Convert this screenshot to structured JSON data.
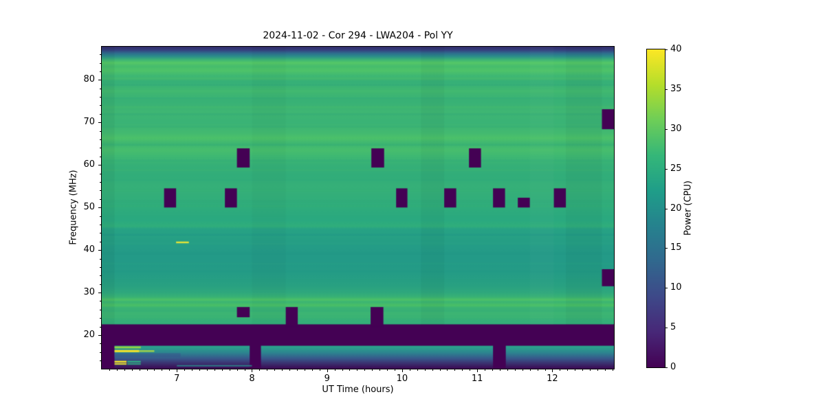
{
  "chart_data": {
    "type": "heatmap",
    "title": "2024-11-02 - Cor 294 - LWA204 - Pol YY",
    "xlabel": "UT Time (hours)",
    "ylabel": "Frequency (MHz)",
    "x_range": [
      6.0,
      12.82
    ],
    "y_range": [
      12.1,
      87.8
    ],
    "x_major_ticks": [
      7,
      8,
      9,
      10,
      11,
      12
    ],
    "x_minor_step": 0.1,
    "y_major_ticks": [
      20,
      30,
      40,
      50,
      60,
      70,
      80
    ],
    "y_minor_step": 2,
    "grid": false,
    "legend_position": "none",
    "colorbar": {
      "label": "Power (CPU)",
      "min": 0,
      "max": 40,
      "ticks": [
        0,
        5,
        10,
        15,
        20,
        25,
        30,
        35,
        40
      ],
      "viridis": [
        "#440154",
        "#482878",
        "#3e4989",
        "#31688e",
        "#26828e",
        "#1f9e89",
        "#35b779",
        "#6ece58",
        "#b5de2b",
        "#fde725"
      ]
    },
    "masked_color": "#440154",
    "background_profile": [
      [
        87.8,
        "#322b69"
      ],
      [
        87.0,
        "#35417e"
      ],
      [
        86.3,
        "#2f6b8e"
      ],
      [
        85.5,
        "#2b9089"
      ],
      [
        84.6,
        "#41b973"
      ],
      [
        84.0,
        "#55c767"
      ],
      [
        83.2,
        "#46bd6d"
      ],
      [
        82.2,
        "#4fc369"
      ],
      [
        81.0,
        "#3fb873"
      ],
      [
        79.5,
        "#36b078"
      ],
      [
        77.5,
        "#41b871"
      ],
      [
        75.0,
        "#38b176"
      ],
      [
        72.5,
        "#3fb673"
      ],
      [
        70.0,
        "#3ab376"
      ],
      [
        67.5,
        "#43ba70"
      ],
      [
        66.3,
        "#4cc16a"
      ],
      [
        65.0,
        "#3db672"
      ],
      [
        63.5,
        "#48be6d"
      ],
      [
        62.0,
        "#3eb873"
      ],
      [
        60.0,
        "#36b077"
      ],
      [
        57.5,
        "#31ad7a"
      ],
      [
        55.0,
        "#36b078"
      ],
      [
        52.0,
        "#32ae7a"
      ],
      [
        49.0,
        "#2dab7d"
      ],
      [
        47.0,
        "#2aa980"
      ],
      [
        45.6,
        "#30ae7b"
      ],
      [
        44.9,
        "#27a285"
      ],
      [
        43.0,
        "#26a084"
      ],
      [
        40.0,
        "#249b87"
      ],
      [
        37.0,
        "#239a87"
      ],
      [
        34.0,
        "#259d85"
      ],
      [
        31.5,
        "#29a181"
      ],
      [
        30.0,
        "#2fa87d"
      ],
      [
        29.0,
        "#38b175"
      ],
      [
        28.3,
        "#4dc167"
      ],
      [
        27.8,
        "#3bb473"
      ],
      [
        27.0,
        "#4ac066"
      ],
      [
        26.4,
        "#39b275"
      ],
      [
        25.0,
        "#3db573"
      ],
      [
        23.5,
        "#35af78"
      ],
      [
        22.6,
        "#33ad79"
      ],
      [
        22.45,
        "#440154"
      ],
      [
        12.1,
        "#440154"
      ]
    ],
    "texture_stripes": [
      {
        "f": 80.3,
        "h": 0.6,
        "c": "#4fc167",
        "a": 0.35
      },
      {
        "f": 78.8,
        "h": 0.5,
        "c": "#2da37d",
        "a": 0.3
      },
      {
        "f": 77.3,
        "h": 0.7,
        "c": "#47bd6c",
        "a": 0.3
      },
      {
        "f": 75.7,
        "h": 0.4,
        "c": "#2da37d",
        "a": 0.25
      },
      {
        "f": 73.6,
        "h": 0.6,
        "c": "#49be6b",
        "a": 0.3
      },
      {
        "f": 71.9,
        "h": 0.5,
        "c": "#2da37d",
        "a": 0.25
      },
      {
        "f": 69.0,
        "h": 0.4,
        "c": "#2da37d",
        "a": 0.2
      },
      {
        "f": 64.7,
        "h": 0.4,
        "c": "#2da37d",
        "a": 0.25
      },
      {
        "f": 61.0,
        "h": 0.4,
        "c": "#2da37d",
        "a": 0.2
      },
      {
        "f": 58.8,
        "h": 0.5,
        "c": "#42b96f",
        "a": 0.25
      },
      {
        "f": 56.5,
        "h": 0.4,
        "c": "#2da37d",
        "a": 0.2
      },
      {
        "f": 54.0,
        "h": 0.5,
        "c": "#3eb671",
        "a": 0.2
      },
      {
        "f": 51.5,
        "h": 0.4,
        "c": "#2da37d",
        "a": 0.2
      },
      {
        "f": 50.3,
        "h": 0.5,
        "c": "#3eb671",
        "a": 0.2
      },
      {
        "f": 48.0,
        "h": 0.4,
        "c": "#2da37d",
        "a": 0.2
      },
      {
        "f": 43.6,
        "h": 0.5,
        "c": "#1f9289",
        "a": 0.3
      },
      {
        "f": 41.5,
        "h": 0.5,
        "c": "#2fa987",
        "a": 0.25
      },
      {
        "f": 39.2,
        "h": 0.4,
        "c": "#1f9289",
        "a": 0.25
      },
      {
        "f": 36.8,
        "h": 0.5,
        "c": "#2fa987",
        "a": 0.2
      },
      {
        "f": 35.0,
        "h": 0.4,
        "c": "#1f9289",
        "a": 0.25
      },
      {
        "f": 32.8,
        "h": 0.4,
        "c": "#2aa081",
        "a": 0.2
      },
      {
        "f": 25.7,
        "h": 0.4,
        "c": "#2da37d",
        "a": 0.2
      },
      {
        "f": 24.2,
        "h": 0.5,
        "c": "#44bb6e",
        "a": 0.25
      }
    ],
    "column_tints": [
      {
        "t1": 6.0,
        "t2": 6.17,
        "c": "#000000",
        "a": 0.04
      },
      {
        "t1": 8.0,
        "t2": 8.45,
        "c": "#000000",
        "a": 0.02
      },
      {
        "t1": 10.25,
        "t2": 10.56,
        "c": "#000000",
        "a": 0.03
      },
      {
        "t1": 11.7,
        "t2": 12.02,
        "c": "#ffffff",
        "a": 0.02
      },
      {
        "t1": 12.18,
        "t2": 12.66,
        "c": "#000000",
        "a": 0.03
      }
    ],
    "overlays": [
      {
        "t1": 6.99,
        "t2": 7.16,
        "f1": 41.6,
        "f2": 42.0,
        "c": "#e0e239",
        "a": 1
      }
    ],
    "bottom_mask_band": {
      "f_top": 22.45,
      "f_bottom": 12.1
    },
    "masked_blocks": [
      {
        "t1": 6.83,
        "t2": 6.99,
        "f1": 50.0,
        "f2": 54.5
      },
      {
        "t1": 7.64,
        "t2": 7.8,
        "f1": 50.0,
        "f2": 54.5
      },
      {
        "t1": 9.92,
        "t2": 10.07,
        "f1": 50.0,
        "f2": 54.5
      },
      {
        "t1": 10.56,
        "t2": 10.72,
        "f1": 50.0,
        "f2": 54.5
      },
      {
        "t1": 11.21,
        "t2": 11.37,
        "f1": 50.0,
        "f2": 54.5
      },
      {
        "t1": 11.54,
        "t2": 11.7,
        "f1": 50.0,
        "f2": 52.3
      },
      {
        "t1": 12.02,
        "t2": 12.18,
        "f1": 50.0,
        "f2": 54.5
      },
      {
        "t1": 7.8,
        "t2": 7.97,
        "f1": 59.4,
        "f2": 63.9
      },
      {
        "t1": 9.59,
        "t2": 9.76,
        "f1": 59.4,
        "f2": 63.9
      },
      {
        "t1": 10.89,
        "t2": 11.05,
        "f1": 59.4,
        "f2": 63.9
      },
      {
        "t1": 7.8,
        "t2": 7.97,
        "f1": 24.2,
        "f2": 26.6
      },
      {
        "t1": 8.45,
        "t2": 8.61,
        "f1": 22.1,
        "f2": 26.6
      },
      {
        "t1": 9.58,
        "t2": 9.75,
        "f1": 22.1,
        "f2": 26.6
      },
      {
        "t1": 12.66,
        "t2": 12.82,
        "f1": 68.4,
        "f2": 73.1
      },
      {
        "t1": 12.66,
        "t2": 12.82,
        "f1": 31.5,
        "f2": 35.5
      }
    ],
    "subband": {
      "f_top": 17.5,
      "f_bottom": 12.1,
      "segments": [
        [
          6.17,
          7.97
        ],
        [
          8.12,
          11.21
        ],
        [
          11.38,
          12.82
        ]
      ],
      "gradient": [
        [
          0,
          "#2ba58c"
        ],
        [
          0.3,
          "#2d8590"
        ],
        [
          0.55,
          "#37598b"
        ],
        [
          0.75,
          "#3c3472"
        ],
        [
          0.9,
          "#3a1a5e"
        ],
        [
          1,
          "#400a56"
        ]
      ],
      "streaks": [
        {
          "t1": 6.17,
          "t2": 6.52,
          "f1": 16.9,
          "f2": 17.35,
          "c": "#9ed93c",
          "a": 0.9
        },
        {
          "t1": 6.17,
          "t2": 6.5,
          "f1": 16.0,
          "f2": 16.5,
          "c": "#f4e32a",
          "a": 1
        },
        {
          "t1": 6.5,
          "t2": 6.7,
          "f1": 16.05,
          "f2": 16.45,
          "c": "#b5dd3f",
          "a": 0.85
        },
        {
          "t1": 6.17,
          "t2": 7.05,
          "f1": 14.85,
          "f2": 15.75,
          "c": "#39568c",
          "a": 0.55
        },
        {
          "t1": 6.17,
          "t2": 6.33,
          "f1": 13.55,
          "f2": 13.95,
          "c": "#f4e32a",
          "a": 1
        },
        {
          "t1": 6.34,
          "t2": 6.52,
          "f1": 13.55,
          "f2": 13.95,
          "c": "#2fb585",
          "a": 0.9
        },
        {
          "t1": 6.17,
          "t2": 6.33,
          "f1": 13.05,
          "f2": 13.4,
          "c": "#e3e135",
          "a": 0.95
        },
        {
          "t1": 6.34,
          "t2": 6.52,
          "f1": 13.05,
          "f2": 13.4,
          "c": "#2fb585",
          "a": 0.8
        },
        {
          "t1": 7.0,
          "t2": 8.0,
          "f1": 12.65,
          "f2": 12.95,
          "c": "#2b8a8d",
          "a": 0.9
        }
      ]
    }
  }
}
